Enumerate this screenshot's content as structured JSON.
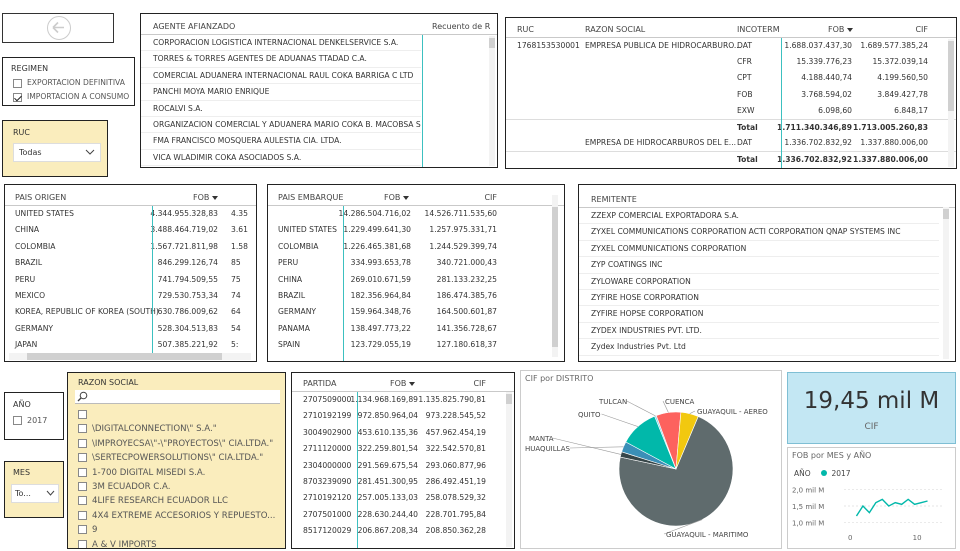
{
  "slicers": {
    "regimen": {
      "title": "REGIMEN",
      "items": [
        {
          "label": "EXPORTACION DEFINITIVA",
          "checked": false
        },
        {
          "label": "IMPORTACION A CONSUMO",
          "checked": true
        }
      ]
    },
    "ruc": {
      "title": "RUC",
      "value": "Todas"
    },
    "anio": {
      "title": "AÑO",
      "items": [
        {
          "label": "2017",
          "checked": false
        }
      ]
    },
    "mes": {
      "title": "MES",
      "value": "To..."
    }
  },
  "agente": {
    "header": "AGENTE AFIANZADO",
    "header2": "Recuento de RE",
    "rows": [
      "CORPORACION LOGISTICA INTERNACIONAL DENKELSERVICE S.A.",
      "TORRES & TORRES AGENTES DE ADUANAS TTADAD C.A.",
      "COMERCIAL ADUANERA INTERNACIONAL RAUL COKA BARRIGA C LTD",
      "PANCHI MOYA MARIO ENRIQUE",
      "ROCALVI S.A.",
      "ORGANIZACION COMERCIAL Y ADUANERA MARIO COKA B. MACOBSA S...",
      "FMA FRANCISCO MOSQUERA AULESTIA CIA. LTDA.",
      "VICA WLADIMIR COKA ASOCIADOS S.A."
    ]
  },
  "ruc_table": {
    "headers": {
      "ruc": "RUC",
      "razon": "RAZON SOCIAL",
      "inco": "INCOTERM",
      "fob": "FOB",
      "cif": "CIF"
    },
    "rows": [
      {
        "ruc": "1768153530001",
        "razon": "EMPRESA PUBLICA DE HIDROCARBURO...",
        "inco": "DAT",
        "fob": "1.688.037.437,30",
        "cif": "1.689.577.385,24",
        "bold": false
      },
      {
        "ruc": "",
        "razon": "",
        "inco": "CFR",
        "fob": "15.339.776,23",
        "cif": "15.372.039,14",
        "bold": false
      },
      {
        "ruc": "",
        "razon": "",
        "inco": "CPT",
        "fob": "4.188.440,74",
        "cif": "4.199.560,50",
        "bold": false
      },
      {
        "ruc": "",
        "razon": "",
        "inco": "FOB",
        "fob": "3.768.594,02",
        "cif": "3.849.427,78",
        "bold": false
      },
      {
        "ruc": "",
        "razon": "",
        "inco": "EXW",
        "fob": "6.098,60",
        "cif": "6.848,17",
        "bold": false
      },
      {
        "ruc": "",
        "razon": "",
        "inco": "Total",
        "fob": "1.711.340.346,89",
        "cif": "1.713.005.260,83",
        "bold": true
      },
      {
        "ruc": "",
        "razon": "EMPRESA DE HIDROCARBUROS DEL E...",
        "inco": "DAT",
        "fob": "1.336.702.832,92",
        "cif": "1.337.880.006,00",
        "bold": false
      },
      {
        "ruc": "",
        "razon": "",
        "inco": "Total",
        "fob": "1.336.702.832,92",
        "cif": "1.337.880.006,00",
        "bold": true
      }
    ]
  },
  "pais_origen": {
    "headers": {
      "pais": "PAIS ORIGEN",
      "fob": "FOB"
    },
    "rows": [
      {
        "pais": "UNITED STATES",
        "fob": "4.344.955.328,83",
        "cif": "4.35"
      },
      {
        "pais": "CHINA",
        "fob": "3.488.464.719,02",
        "cif": "3.61"
      },
      {
        "pais": "COLOMBIA",
        "fob": "1.567.721.811,98",
        "cif": "1.58"
      },
      {
        "pais": "BRAZIL",
        "fob": "846.299.126,74",
        "cif": "85"
      },
      {
        "pais": "PERU",
        "fob": "741.794.509,55",
        "cif": "75"
      },
      {
        "pais": "MEXICO",
        "fob": "729.530.753,34",
        "cif": "74"
      },
      {
        "pais": "KOREA, REPUBLIC OF KOREA (SOUTH)",
        "fob": "630.786.009,62",
        "cif": "64"
      },
      {
        "pais": "GERMANY",
        "fob": "528.304.513,83",
        "cif": "54"
      },
      {
        "pais": "JAPAN",
        "fob": "507.385.221,92",
        "cif": "5:"
      }
    ]
  },
  "pais_embarque": {
    "headers": {
      "pais": "PAIS EMBARQUE",
      "fob": "FOB",
      "cif": "CIF"
    },
    "rows": [
      {
        "pais": "",
        "fob": "14.286.504.716,02",
        "cif": "14.526.711.535,60"
      },
      {
        "pais": "UNITED STATES",
        "fob": "1.229.499.641,30",
        "cif": "1.257.975.331,71"
      },
      {
        "pais": "COLOMBIA",
        "fob": "1.226.465.381,68",
        "cif": "1.244.529.399,74"
      },
      {
        "pais": "PERU",
        "fob": "334.993.653,78",
        "cif": "340.721.000,43"
      },
      {
        "pais": "CHINA",
        "fob": "269.010.671,59",
        "cif": "281.133.232,25"
      },
      {
        "pais": "BRAZIL",
        "fob": "182.356.964,84",
        "cif": "186.474.385,76"
      },
      {
        "pais": "GERMANY",
        "fob": "159.964.348,76",
        "cif": "164.500.601,87"
      },
      {
        "pais": "PANAMA",
        "fob": "138.497.773,22",
        "cif": "141.356.728,67"
      },
      {
        "pais": "SPAIN",
        "fob": "123.729.055,19",
        "cif": "127.180.618,37"
      }
    ]
  },
  "remitente": {
    "header": "REMITENTE",
    "rows": [
      "ZZEXP COMERCIAL EXPORTADORA S.A.",
      "ZYXEL COMMUNICATIONS CORPORATION ACTI CORPORATION QNAP SYSTEMS INC",
      "ZYXEL COMMUNICATIONS CORPORATION",
      "ZYP COATINGS INC",
      "ZYLOWARE CORPORATION",
      "ZYFIRE HOSE CORPORATION",
      "ZYFIRE HOPSE CORPORATION",
      "ZYDEX INDUSTRIES PVT. LTD.",
      "Zydex Industries Pvt. Ltd"
    ]
  },
  "razon_social": {
    "header": "RAZON SOCIAL",
    "items": [
      "",
      "\\DIGITALCONNECTION\\\" S.A.\"",
      "\\IMPROYECSA\\\"-\\\"PROYECTOS\\\" CIA.LTDA.\"",
      "\\SERTECPOWERSOLUTIONS\\\" CIA.LTDA.\"",
      "1-700 DIGITAL MISEDI S.A.",
      "3M ECUADOR C.A.",
      "4LIFE RESEARCH ECUADOR LLC",
      "4X4 EXTREME ACCESORIOS Y REPUESTO...",
      "9",
      "A & V IMPORTS"
    ]
  },
  "partida": {
    "headers": {
      "partida": "PARTIDA",
      "fob": "FOB",
      "cif": "CIF"
    },
    "rows": [
      {
        "partida": "2707509000",
        "fob": "1.134.968.169,89",
        "cif": "1.135.825.790,81"
      },
      {
        "partida": "2710192199",
        "fob": "972.850.964,04",
        "cif": "973.228.545,52"
      },
      {
        "partida": "3004902900",
        "fob": "453.610.135,36",
        "cif": "457.962.454,19"
      },
      {
        "partida": "2711120000",
        "fob": "322.259.801,54",
        "cif": "322.542.570,81"
      },
      {
        "partida": "2304000000",
        "fob": "291.569.675,54",
        "cif": "293.060.877,96"
      },
      {
        "partida": "8703239090",
        "fob": "281.451.300,95",
        "cif": "286.492.451,19"
      },
      {
        "partida": "2710192120",
        "fob": "257.005.133,03",
        "cif": "258.078.529,32"
      },
      {
        "partida": "2707501000",
        "fob": "228.630.244,40",
        "cif": "228.701.795,84"
      },
      {
        "partida": "8517120029",
        "fob": "206.867.208,34",
        "cif": "208.850.362,28"
      }
    ]
  },
  "pie": {
    "title": "CIF por DISTRITO",
    "labels": {
      "tulcan": "TULCAN",
      "cuenca": "CUENCA",
      "quito": "QUITO",
      "gye_aereo": "GUAYAQUIL - AEREO",
      "manta": "MANTA",
      "huaquillas": "HUAQUILLAS",
      "gye_maritimo": "GUAYAQUIL - MARITIMO"
    },
    "colors": {
      "tulcan": "#3a8fb7",
      "cuenca": "#fd625e",
      "quito": "#01b8aa",
      "gye_aereo": "#f2c80f",
      "manta": "#5f6b6d",
      "huaquillas": "#8ad4eb",
      "gye_maritimo": "#5f6b6d"
    }
  },
  "kpi": {
    "value": "19,45 mil M",
    "label": "CIF"
  },
  "line": {
    "title": "FOB por MES y AÑO",
    "legend_title": "AÑO",
    "legend_item": "2017",
    "color": "#01b8aa",
    "yticks": [
      "2,0 mil M",
      "1,5 mil M",
      "1,0 mil M"
    ],
    "xticks": [
      "0",
      "10"
    ]
  },
  "chart_data": [
    {
      "type": "pie",
      "title": "CIF por DISTRITO",
      "labels": [
        "GUAYAQUIL - MARITIMO",
        "MANTA",
        "HUAQUILLAS",
        "QUITO",
        "TULCAN",
        "CUENCA",
        "GUAYAQUIL - AEREO"
      ],
      "values": [
        72.0,
        1.5,
        3.0,
        11.0,
        0.5,
        7.0,
        5.0
      ]
    },
    {
      "type": "line",
      "title": "FOB por MES y AÑO",
      "series": [
        {
          "name": "2017",
          "x": [
            1,
            2,
            3,
            4,
            5,
            6,
            7,
            8,
            9,
            10,
            11,
            12
          ],
          "y": [
            1.2,
            1.5,
            1.3,
            1.6,
            1.7,
            1.5,
            1.6,
            1.55,
            1.7,
            1.55,
            1.6,
            1.65
          ]
        }
      ],
      "ylim": [
        0.9,
        2.1
      ],
      "xlim": [
        0,
        13
      ]
    }
  ]
}
